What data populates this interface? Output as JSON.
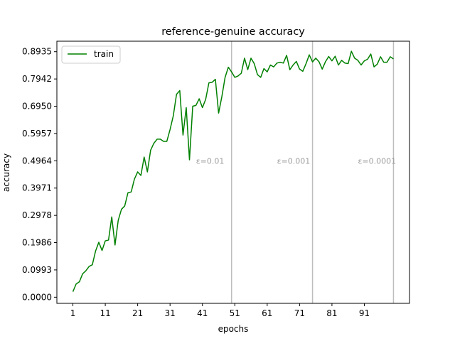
{
  "chart_data": {
    "type": "line",
    "title": "reference-genuine accuracy",
    "xlabel": "epochs",
    "ylabel": "accuracy",
    "xlim": [
      -3.95,
      104.95
    ],
    "ylim": [
      -0.0224,
      0.9316
    ],
    "xticks": [
      1,
      11,
      21,
      31,
      41,
      51,
      61,
      71,
      81,
      91
    ],
    "yticks": [
      "0.0000",
      "0.0993",
      "0.1986",
      "0.2978",
      "0.3971",
      "0.4964",
      "0.5957",
      "0.6950",
      "0.7942",
      "0.8935"
    ],
    "ytick_values": [
      0.0,
      0.0993,
      0.1986,
      0.2978,
      0.3971,
      0.4964,
      0.5957,
      0.695,
      0.7942,
      0.8935
    ],
    "grid": false,
    "legend_position": "upper-left",
    "series": [
      {
        "name": "train",
        "color": "#008000",
        "x": [
          1,
          2,
          3,
          4,
          5,
          6,
          7,
          8,
          9,
          10,
          11,
          12,
          13,
          14,
          15,
          16,
          17,
          18,
          19,
          20,
          21,
          22,
          23,
          24,
          25,
          26,
          27,
          28,
          29,
          30,
          31,
          32,
          33,
          34,
          35,
          36,
          37,
          38,
          39,
          40,
          41,
          42,
          43,
          44,
          45,
          46,
          47,
          48,
          49,
          50,
          51,
          52,
          53,
          54,
          55,
          56,
          57,
          58,
          59,
          60,
          61,
          62,
          63,
          64,
          65,
          66,
          67,
          68,
          69,
          70,
          71,
          72,
          73,
          74,
          75,
          76,
          77,
          78,
          79,
          80,
          81,
          82,
          83,
          84,
          85,
          86,
          87,
          88,
          89,
          90,
          91,
          92,
          93,
          94,
          95,
          96,
          97,
          98,
          99,
          100
        ],
        "values": [
          0.02,
          0.048,
          0.056,
          0.085,
          0.096,
          0.112,
          0.118,
          0.168,
          0.2,
          0.17,
          0.205,
          0.208,
          0.292,
          0.19,
          0.28,
          0.32,
          0.332,
          0.38,
          0.383,
          0.43,
          0.456,
          0.443,
          0.51,
          0.456,
          0.535,
          0.56,
          0.575,
          0.575,
          0.567,
          0.567,
          0.61,
          0.66,
          0.738,
          0.752,
          0.59,
          0.69,
          0.5,
          0.695,
          0.698,
          0.722,
          0.69,
          0.72,
          0.78,
          0.782,
          0.793,
          0.67,
          0.73,
          0.8,
          0.837,
          0.82,
          0.8,
          0.805,
          0.815,
          0.87,
          0.828,
          0.87,
          0.85,
          0.81,
          0.8,
          0.832,
          0.82,
          0.845,
          0.838,
          0.852,
          0.855,
          0.852,
          0.88,
          0.828,
          0.845,
          0.858,
          0.83,
          0.822,
          0.85,
          0.882,
          0.856,
          0.87,
          0.857,
          0.83,
          0.857,
          0.876,
          0.86,
          0.877,
          0.845,
          0.862,
          0.852,
          0.85,
          0.895,
          0.87,
          0.862,
          0.845,
          0.86,
          0.866,
          0.885,
          0.838,
          0.848,
          0.875,
          0.855,
          0.855,
          0.875,
          0.867
        ]
      }
    ],
    "vlines": [
      {
        "x": 50,
        "label": "ε=0.01"
      },
      {
        "x": 75,
        "label": "ε=0.001"
      },
      {
        "x": 100,
        "label": "ε=0.0001"
      }
    ],
    "annotation_y": 0.4964
  }
}
